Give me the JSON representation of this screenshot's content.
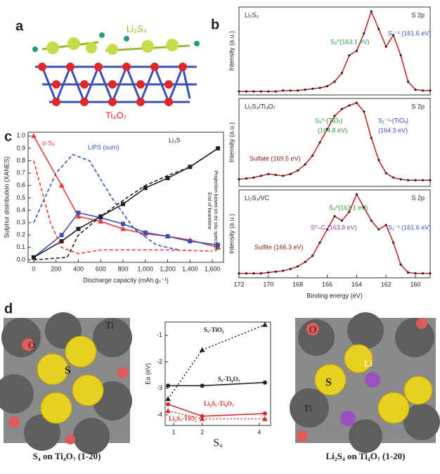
{
  "panels": {
    "a": {
      "label": "a",
      "top_species": "Li₂S₄",
      "substrate": "Ti₄O₇"
    },
    "b": {
      "label": "b"
    },
    "c": {
      "label": "c"
    },
    "d": {
      "label": "d",
      "left_atoms": [
        "O",
        "S",
        "Ti"
      ],
      "left_caption": "S₄ on Ti₄O₇ (1-20)",
      "right_atoms": [
        "O",
        "S",
        "Li",
        "Ti"
      ],
      "right_caption": "Li₂S₄ on Ti₄O₇ (1-20)"
    }
  },
  "chart_data": [
    {
      "type": "line",
      "title": "Li₂S₄",
      "subtitle": "S 2p",
      "ylabel": "Intensity (a.u.)",
      "xlim": [
        172,
        159
      ],
      "ylim": [
        0,
        1
      ],
      "x": [
        172,
        171.5,
        171,
        170.5,
        170,
        169.5,
        169,
        168.5,
        168,
        167.5,
        167,
        166.5,
        166,
        165.5,
        165,
        164.5,
        164,
        163.5,
        163,
        162.5,
        162,
        161.5,
        161,
        160.5,
        160,
        159.5,
        159
      ],
      "series": [
        {
          "color": "#c0272d",
          "marker": "circle",
          "values": [
            0.04,
            0.04,
            0.04,
            0.04,
            0.04,
            0.04,
            0.05,
            0.05,
            0.05,
            0.06,
            0.07,
            0.08,
            0.1,
            0.15,
            0.25,
            0.45,
            0.5,
            0.7,
            0.95,
            0.75,
            0.55,
            0.68,
            0.45,
            0.15,
            0.06,
            0.05,
            0.05
          ]
        }
      ],
      "annotations": [
        {
          "text": "S₈⁰(163.1 eV)",
          "color": "#2a9a3a"
        },
        {
          "text": "S₁⁻¹ (161.6 eV)",
          "color": "#3a4fb5"
        }
      ]
    },
    {
      "type": "line",
      "title": "Li₂S₄/Ti₄O₇",
      "subtitle": "S 2p",
      "ylabel": "Intensity (a.u.)",
      "xlim": [
        172,
        159
      ],
      "ylim": [
        0,
        1
      ],
      "x": [
        172,
        171.5,
        171,
        170.5,
        170,
        169.5,
        169,
        168.5,
        168,
        167.5,
        167,
        166.5,
        166,
        165.5,
        165,
        164.5,
        164,
        163.5,
        163,
        162.5,
        162,
        161.5,
        161,
        160.5,
        160,
        159.5,
        159
      ],
      "series": [
        {
          "color": "#c0272d",
          "marker": "circle",
          "values": [
            0.08,
            0.09,
            0.1,
            0.12,
            0.14,
            0.13,
            0.12,
            0.14,
            0.18,
            0.25,
            0.35,
            0.5,
            0.65,
            0.8,
            0.88,
            0.92,
            0.95,
            0.85,
            0.55,
            0.3,
            0.15,
            0.1,
            0.08,
            0.07,
            0.07,
            0.07,
            0.07
          ]
        }
      ],
      "annotations": [
        {
          "text": "S₈⁰-(TiOₓ)",
          "color": "#2a9a3a"
        },
        {
          "text": "(164.8 eV)",
          "color": "#2a9a3a"
        },
        {
          "text": "S₁⁻¹-(TiOₓ)",
          "color": "#3a4fb5"
        },
        {
          "text": "(164.3 eV)",
          "color": "#3a4fb5"
        },
        {
          "text": "Sulfate (169.5 eV)",
          "color": "#8b1a1a"
        }
      ]
    },
    {
      "type": "line",
      "title": "Li₂S₄/VC",
      "subtitle": "S 2p",
      "ylabel": "Intensity (a.u.)",
      "xlabel": "Binding energy (eV)",
      "xlim": [
        172,
        159
      ],
      "ylim": [
        0,
        1
      ],
      "xticks": [
        172,
        170,
        168,
        166,
        164,
        162,
        160
      ],
      "x": [
        172,
        171.5,
        171,
        170.5,
        170,
        169.5,
        169,
        168.5,
        168,
        167.5,
        167,
        166.5,
        166,
        165.5,
        165,
        164.5,
        164,
        163.5,
        163,
        162.5,
        162,
        161.5,
        161,
        160.5,
        160,
        159.5,
        159
      ],
      "series": [
        {
          "color": "#c0272d",
          "marker": "circle",
          "values": [
            0.05,
            0.05,
            0.05,
            0.05,
            0.06,
            0.07,
            0.08,
            0.1,
            0.13,
            0.18,
            0.25,
            0.4,
            0.55,
            0.7,
            0.65,
            0.75,
            0.95,
            0.8,
            0.65,
            0.55,
            0.6,
            0.4,
            0.15,
            0.06,
            0.05,
            0.05,
            0.05
          ]
        }
      ],
      "annotations": [
        {
          "text": "S₈⁰(163.1 eV)",
          "color": "#2a9a3a"
        },
        {
          "text": "S⁰–C (163.8 eV)",
          "color": "#9b3bb0"
        },
        {
          "text": "S₁⁻¹ (161.6 eV)",
          "color": "#3a4fb5"
        },
        {
          "text": "Sulfite (166.3 eV)",
          "color": "#8b1a1a"
        }
      ]
    },
    {
      "type": "line",
      "xlabel": "Discharge capacity (mAh.gₛ⁻¹)",
      "ylabel": "Sulphur distribution (XANES)",
      "xlim": [
        -50,
        1700
      ],
      "ylim": [
        -0.02,
        1.03
      ],
      "xticks": [
        0,
        200,
        400,
        600,
        800,
        {
          "value": 1000,
          "label": "1,000"
        },
        {
          "value": 1200,
          "label": "1,200"
        },
        {
          "value": 1400,
          "label": "1,400"
        },
        {
          "value": 1600,
          "label": "1,600"
        }
      ],
      "yticks": [
        {
          "value": 0,
          "label": "0.0"
        },
        0.1,
        0.2,
        0.3,
        0.4,
        0.5,
        0.6,
        0.7,
        0.8,
        0.9,
        {
          "value": 1,
          "label": "1.0"
        }
      ],
      "series": [
        {
          "name": "α-S₈",
          "color": "#e8393a",
          "marker": "triangle",
          "dash": "solid",
          "x": [
            0,
            250,
            400,
            600,
            800,
            1000,
            1200,
            1400,
            1650
          ],
          "values": [
            1.0,
            0.6,
            0.35,
            0.31,
            0.25,
            0.21,
            0.19,
            0.16,
            0.1
          ]
        },
        {
          "color": "#3a4fb5",
          "marker": "square",
          "dash": "solid",
          "x": [
            0,
            250,
            400,
            600,
            800,
            1000,
            1200,
            1400,
            1650
          ],
          "values": [
            0.02,
            0.2,
            0.38,
            0.34,
            0.29,
            0.22,
            0.19,
            0.15,
            0.12
          ]
        },
        {
          "name": "Li₂S",
          "color": "#222222",
          "marker": "square",
          "dash": "solid",
          "x": [
            0,
            250,
            400,
            600,
            800,
            1000,
            1200,
            1400,
            1650
          ],
          "values": [
            0.02,
            0.15,
            0.25,
            0.35,
            0.45,
            0.58,
            0.66,
            0.75,
            0.9
          ]
        },
        {
          "name": "LiPS (sum)",
          "color": "#3a4fb5",
          "dash": "dashed",
          "x": [
            0,
            200,
            350,
            500,
            700,
            900,
            1100,
            1300
          ],
          "values": [
            0.3,
            0.7,
            0.85,
            0.8,
            0.5,
            0.25,
            0.12,
            0.08
          ]
        },
        {
          "color": "#e8393a",
          "dash": "dashed",
          "x": [
            0,
            150,
            250,
            400,
            600,
            800,
            1200,
            1600
          ],
          "values": [
            0.8,
            0.3,
            0.1,
            0.05,
            0.08,
            0.08,
            0.08,
            0.07
          ]
        },
        {
          "color": "#222222",
          "dash": "dashed",
          "x": [
            0,
            300,
            400,
            600,
            800,
            1000,
            1200,
            1400,
            1650
          ],
          "values": [
            0,
            0.02,
            0.2,
            0.35,
            0.48,
            0.6,
            0.68,
            0.75,
            0.9
          ]
        }
      ],
      "annotations": [
        {
          "text": "End of beamtime",
          "color": "#222222"
        },
        {
          "text": "Projection based on ex situ spectrum",
          "color": "#222222"
        }
      ]
    },
    {
      "type": "line",
      "xlabel": "Sₓ",
      "ylabel": "Ea (eV)",
      "xlim": [
        0.7,
        4.4
      ],
      "ylim": [
        -4.4,
        -0.5
      ],
      "xticks": [
        1,
        2,
        4
      ],
      "yticks": [
        -1,
        -2,
        -3,
        -4
      ],
      "series": [
        {
          "name": "Sₓ-TiO₂",
          "color": "#222222",
          "marker": "triangle",
          "dash": "dotted",
          "x": [
            0.8,
            2,
            4.2
          ],
          "values": [
            -3.4,
            -1.55,
            -0.6
          ]
        },
        {
          "name": "Sₓ-Ti₄O₇",
          "color": "#222222",
          "marker": "circle",
          "dash": "solid",
          "x": [
            0.8,
            2,
            4.2
          ],
          "values": [
            -2.9,
            -2.9,
            -2.78
          ]
        },
        {
          "name": "Li₂Sₓ-Ti₄O₇",
          "color": "#d03030",
          "marker": "circle",
          "dash": "solid",
          "x": [
            0.8,
            2,
            4.2
          ],
          "values": [
            -3.6,
            -4.05,
            -3.95
          ]
        },
        {
          "name": "Li₂Sₓ-TiO₂",
          "color": "#d03030",
          "marker": "triangle",
          "dash": "dotted",
          "x": [
            0.8,
            2,
            4.2
          ],
          "values": [
            -3.85,
            -4.15,
            -4.15
          ]
        }
      ]
    }
  ]
}
